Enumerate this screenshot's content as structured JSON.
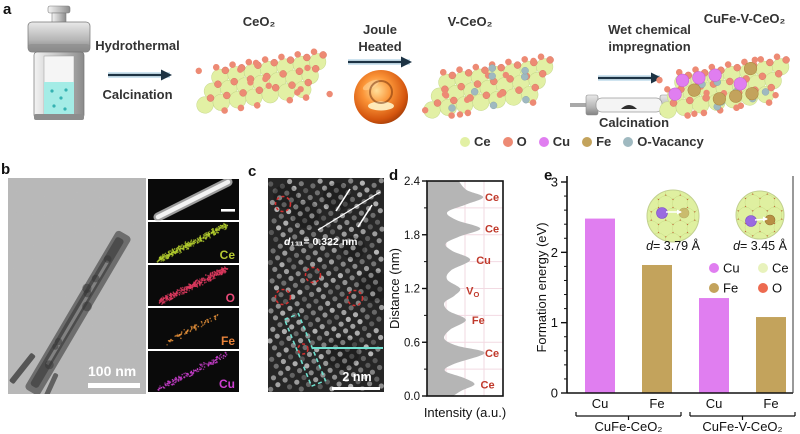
{
  "figure": {
    "panel_labels": {
      "a": "a",
      "b": "b",
      "c": "c",
      "d": "d",
      "e": "e"
    }
  },
  "colors": {
    "ce": "#e2f0a4",
    "o": "#ed8a74",
    "cu": "#e07ef0",
    "fe": "#c3a35c",
    "vacancy": "#9fb9c0",
    "arrow": "#1d3344",
    "arrow_halo": "#cfe4f0",
    "annotation_red": "#d23030",
    "cyan": "#6fe0cf",
    "profile_fill": "#b5b5b5",
    "grid_pink": "#f2dae2",
    "peak_label": "#c0392b"
  },
  "panel_a": {
    "arrow1": {
      "top": "Hydrothermal",
      "bottom": "Calcination"
    },
    "structure1_label": "CeO₂",
    "arrow2": {
      "line1": "Joule",
      "line2": "Heated"
    },
    "structure2_label": "V-CeO₂",
    "arrow3": {
      "line1": "Wet chemical",
      "line2": "impregnation",
      "bottom": "Calcination"
    },
    "structure3_label": "CuFe-V-CeO₂",
    "legend": [
      {
        "label": "Ce",
        "color": "#e2f0a4"
      },
      {
        "label": "O",
        "color": "#ed8a74"
      },
      {
        "label": "Cu",
        "color": "#e07ef0"
      },
      {
        "label": "Fe",
        "color": "#c3a35c"
      },
      {
        "label": "O-Vacancy",
        "color": "#9fb9c0"
      }
    ]
  },
  "panel_b": {
    "scale_bar_label": "100 nm",
    "eds_maps": [
      {
        "element": "",
        "dot_color": "#e0e0e0",
        "label_color": "#ffffff",
        "kind": "haadf"
      },
      {
        "element": "Ce",
        "dot_color": "#b2cc2e",
        "label_color": "#b5c832",
        "kind": "dense"
      },
      {
        "element": "O",
        "dot_color": "#e03a60",
        "label_color": "#e84a78",
        "kind": "dense"
      },
      {
        "element": "Fe",
        "dot_color": "#e8923a",
        "label_color": "#e8833a",
        "kind": "sparse"
      },
      {
        "element": "Cu",
        "dot_color": "#cc3fd0",
        "label_color": "#cc3fd0",
        "kind": "medium"
      }
    ]
  },
  "panel_c": {
    "d_spacing_d": "d",
    "d_spacing_rest": "₁₁₁= 0.322 nm",
    "scale_bar_label": "2 nm"
  },
  "chart_data": [
    {
      "id": "intensity-profile",
      "type": "area",
      "xlabel": "Intensity (a.u.)",
      "ylabel": "Distance (nm)",
      "ylim": [
        0,
        2.4
      ],
      "yticks": [
        0.0,
        0.6,
        1.2,
        1.8,
        2.4
      ],
      "minor_yticks": [
        0.3,
        0.9,
        1.5,
        2.1
      ],
      "grid": true,
      "profile": [
        [
          0.0,
          0.36
        ],
        [
          0.06,
          0.48
        ],
        [
          0.13,
          0.66
        ],
        [
          0.2,
          0.52
        ],
        [
          0.28,
          0.25
        ],
        [
          0.36,
          0.38
        ],
        [
          0.48,
          0.8
        ],
        [
          0.56,
          0.42
        ],
        [
          0.64,
          0.24
        ],
        [
          0.74,
          0.32
        ],
        [
          0.85,
          0.54
        ],
        [
          0.95,
          0.3
        ],
        [
          1.04,
          0.24
        ],
        [
          1.12,
          0.38
        ],
        [
          1.2,
          0.46
        ],
        [
          1.3,
          0.28
        ],
        [
          1.4,
          0.33
        ],
        [
          1.52,
          0.6
        ],
        [
          1.62,
          0.35
        ],
        [
          1.7,
          0.26
        ],
        [
          1.78,
          0.45
        ],
        [
          1.87,
          0.74
        ],
        [
          1.96,
          0.42
        ],
        [
          2.05,
          0.28
        ],
        [
          2.14,
          0.55
        ],
        [
          2.22,
          0.78
        ],
        [
          2.3,
          0.55
        ],
        [
          2.4,
          0.44
        ]
      ],
      "peaks": [
        {
          "label": "Ce",
          "sub": "",
          "distance": 2.22,
          "intensity": 0.78
        },
        {
          "label": "Ce",
          "sub": "",
          "distance": 1.87,
          "intensity": 0.74
        },
        {
          "label": "Cu",
          "sub": "",
          "distance": 1.52,
          "intensity": 0.6
        },
        {
          "label": "V",
          "sub": "O",
          "distance": 1.18,
          "intensity": 0.46
        },
        {
          "label": "Fe",
          "sub": "",
          "distance": 0.85,
          "intensity": 0.54
        },
        {
          "label": "Ce",
          "sub": "",
          "distance": 0.48,
          "intensity": 0.8
        },
        {
          "label": "Ce",
          "sub": "",
          "distance": 0.13,
          "intensity": 0.66
        }
      ]
    },
    {
      "id": "formation-energy",
      "type": "bar",
      "ylabel": "Formation energy (eV)",
      "ylim": [
        0,
        3
      ],
      "yticks": [
        0,
        1,
        2,
        3
      ],
      "categories": [
        "Cu",
        "Fe",
        "Cu",
        "Fe"
      ],
      "values": [
        2.48,
        1.82,
        1.35,
        1.08
      ],
      "bar_colors": [
        "#e07ef0",
        "#c3a35c",
        "#e07ef0",
        "#c3a35c"
      ],
      "groups": [
        {
          "label": "CuFe-CeO₂",
          "span": [
            0,
            1
          ]
        },
        {
          "label": "CuFe-V-CeO₂",
          "span": [
            2,
            3
          ]
        }
      ],
      "insets": [
        {
          "d_prefix": "d",
          "d_rest": "= 3.79 Å"
        },
        {
          "d_prefix": "d",
          "d_rest": "= 3.45 Å"
        }
      ],
      "legend": [
        {
          "label": "Cu",
          "color": "#e07ef0"
        },
        {
          "label": "Ce",
          "color": "#e8f2bc"
        },
        {
          "label": "Fe",
          "color": "#c3a35c"
        },
        {
          "label": "O",
          "color": "#ed6a50"
        }
      ]
    }
  ]
}
